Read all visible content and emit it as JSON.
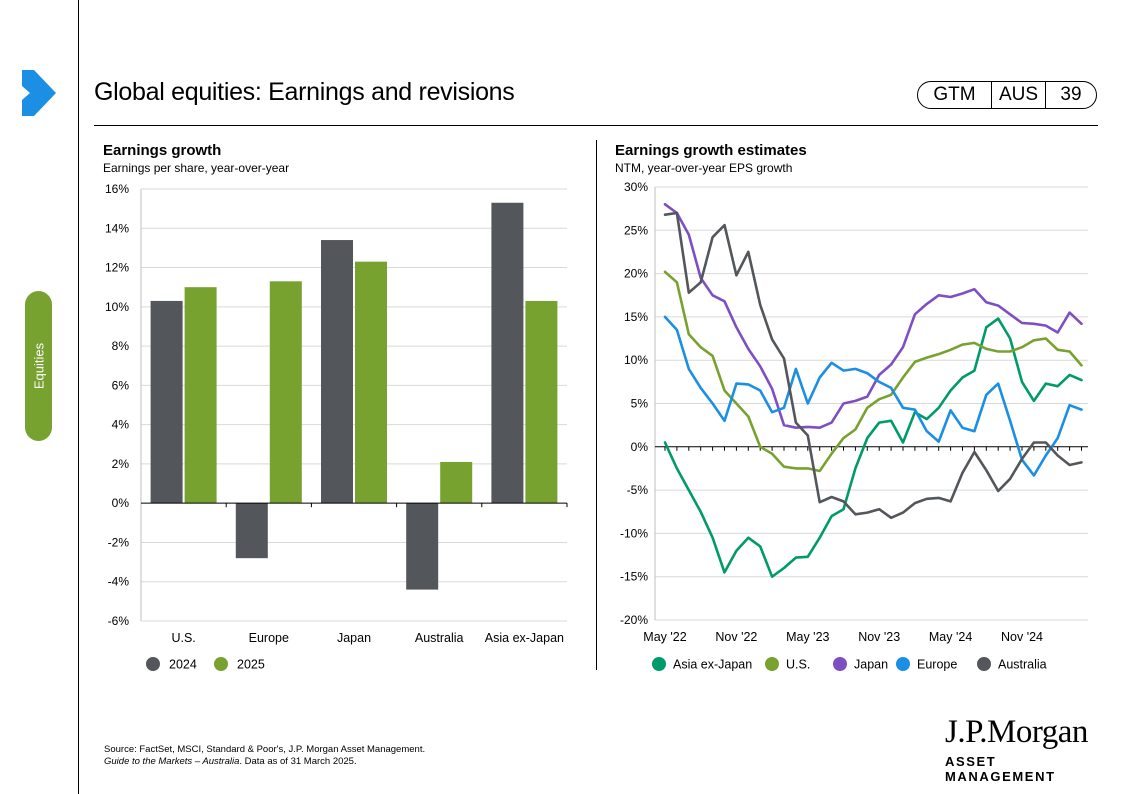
{
  "header": {
    "title": "Global equities: Earnings and revisions",
    "badge": [
      "GTM",
      "AUS",
      "39"
    ]
  },
  "sidebar": {
    "tab_label": "Equities"
  },
  "colors": {
    "accent_green": "#78a22f",
    "dark_gray": "#53565a"
  },
  "footer": {
    "source": "Source: FactSet, MSCI,  Standard & Poor's,  J.P. Morgan Asset Management.",
    "guide_italic": "Guide to the Markets – Australia",
    "data_as_of": ". Data as of 31 March 2025."
  },
  "logo": {
    "name": "J.P.Morgan",
    "sub": "ASSET MANAGEMENT"
  },
  "chart_data": [
    {
      "type": "bar",
      "title": "Earnings growth",
      "subtitle": "Earnings per share, year-over-year",
      "categories": [
        "U.S.",
        "Europe",
        "Japan",
        "Australia",
        "Asia ex-Japan"
      ],
      "series": [
        {
          "name": "2024",
          "color": "#53565a",
          "values": [
            10.3,
            -2.8,
            13.4,
            -4.4,
            15.3
          ]
        },
        {
          "name": "2025",
          "color": "#78a22f",
          "values": [
            11.0,
            11.3,
            12.3,
            2.1,
            10.3
          ]
        }
      ],
      "ylim": [
        -6,
        16
      ],
      "yticks": [
        "16%",
        "14%",
        "12%",
        "10%",
        "8%",
        "6%",
        "4%",
        "2%",
        "0%",
        "-2%",
        "-4%",
        "-6%"
      ],
      "grid": true,
      "legend": "bottom-left"
    },
    {
      "type": "line",
      "title": "Earnings growth estimates",
      "subtitle": "NTM, year-over-year  EPS growth",
      "x_start": "May '22",
      "x_ticks": [
        "May '22",
        "Nov '22",
        "May '23",
        "Nov '23",
        "May '24",
        "Nov '24"
      ],
      "ylim": [
        -20,
        30
      ],
      "yticks": [
        "30%",
        "25%",
        "20%",
        "15%",
        "10%",
        "5%",
        "0%",
        "-5%",
        "-10%",
        "-15%",
        "-20%"
      ],
      "legend": "bottom",
      "series": [
        {
          "name": "Asia ex-Japan",
          "color": "#009b68",
          "values": [
            0.5,
            -2.5,
            -5,
            -7.5,
            -10.5,
            -14.5,
            -12,
            -10.5,
            -11.5,
            -15,
            -14,
            -12.8,
            -12.7,
            -10.5,
            -8,
            -7.2,
            -2.5,
            1,
            2.8,
            3,
            0.5,
            4,
            3.2,
            4.5,
            6.5,
            8,
            8.8,
            13.8,
            14.8,
            12.5,
            7.5,
            5.3,
            7.3,
            7,
            8.3,
            7.7
          ]
        },
        {
          "name": "U.S.",
          "color": "#78a22f",
          "values": [
            20.2,
            19,
            13,
            11.5,
            10.5,
            6.5,
            5,
            3.5,
            0,
            -0.8,
            -2.3,
            -2.5,
            -2.5,
            -2.8,
            -0.8,
            1,
            2,
            4.5,
            5.5,
            6,
            8,
            9.8,
            10.3,
            10.7,
            11.2,
            11.8,
            12,
            11.3,
            11,
            11,
            11.5,
            12.3,
            12.5,
            11.2,
            11,
            9.4
          ]
        },
        {
          "name": "Japan",
          "color": "#7e4fc2",
          "values": [
            28,
            27,
            24.5,
            19.5,
            17.5,
            16.8,
            13.8,
            11.3,
            9.3,
            6.7,
            2.5,
            2.2,
            2.3,
            2.2,
            2.8,
            5,
            5.3,
            5.8,
            8.3,
            9.5,
            11.5,
            15.3,
            16.5,
            17.5,
            17.3,
            17.7,
            18.2,
            16.7,
            16.3,
            15.3,
            14.3,
            14.2,
            14,
            13.2,
            15.5,
            14.2
          ]
        },
        {
          "name": "Europe",
          "color": "#1a8fe3",
          "values": [
            15,
            13.5,
            9,
            6.8,
            5,
            3,
            7.3,
            7.2,
            6.5,
            4,
            4.5,
            9,
            5,
            8,
            9.7,
            8.8,
            9,
            8.5,
            7.5,
            6.8,
            4.5,
            4.3,
            1.8,
            0.6,
            4.2,
            2.2,
            1.8,
            6,
            7.3,
            3,
            -1.5,
            -3.3,
            -1,
            1,
            4.8,
            4.3
          ]
        },
        {
          "name": "Australia",
          "color": "#53565a",
          "values": [
            26.8,
            27,
            17.8,
            19,
            24.2,
            25.6,
            19.8,
            22.5,
            16.4,
            12.4,
            10.2,
            2.8,
            1.3,
            -6.4,
            -5.8,
            -6.3,
            -7.8,
            -7.6,
            -7.2,
            -8.2,
            -7.6,
            -6.5,
            -6,
            -5.9,
            -6.3,
            -3,
            -0.6,
            -2.7,
            -5.1,
            -3.7,
            -1.4,
            0.5,
            0.5,
            -1,
            -2.1,
            -1.8
          ]
        }
      ]
    }
  ]
}
